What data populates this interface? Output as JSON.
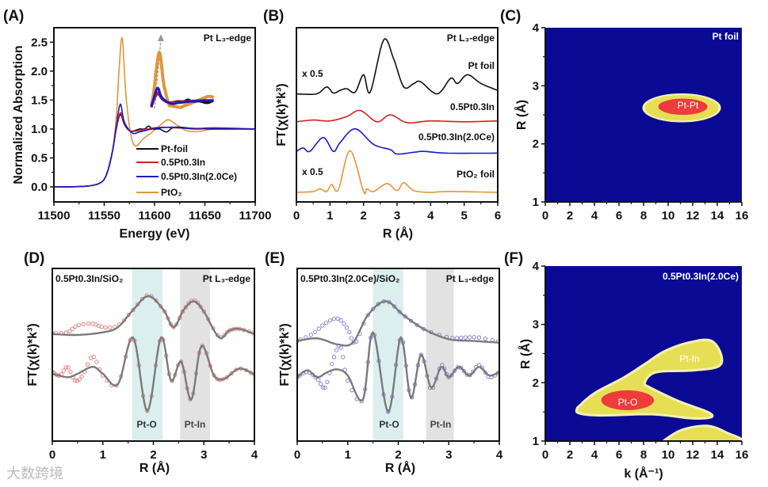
{
  "panel_labels": [
    "(A)",
    "(B)",
    "(C)",
    "(D)",
    "(E)",
    "(F)"
  ],
  "watermark": "大数跨境",
  "colors": {
    "pt_foil": "#111111",
    "pt_in": "#d42020",
    "pt_in_ce": "#1a1ac8",
    "pto2": "#e0963c",
    "map_bg": "#0b0a95",
    "map_yellow": "#e6df55",
    "map_pale": "#f3f0b5",
    "map_red": "#ee3b3b",
    "fit": "#7a7a7a",
    "d_data": "#e07878",
    "e_data": "#7a7ad0",
    "shade_pto": "#dcefef",
    "shade_ptin": "#e2e2e2"
  },
  "chart_data": [
    {
      "id": "A",
      "type": "line",
      "xlabel": "Energy (eV)",
      "ylabel": "Normalized Absorption",
      "xlim": [
        11500,
        11700
      ],
      "ylim": [
        -0.26,
        2.75
      ],
      "xticks": [
        11500,
        11550,
        11600,
        11650,
        11700
      ],
      "yticks": [
        0.0,
        0.5,
        1.0,
        1.5,
        2.0,
        2.5
      ],
      "ytick_labels": [
        "0.0",
        "0.5",
        "1.0",
        "1.5",
        "2.0",
        "2.5"
      ],
      "annotation": "Pt L₃-edge",
      "legend_position": "center-right",
      "series": [
        {
          "name": "Pt-foil",
          "color_key": "pt_foil",
          "x": [
            11500,
            11530,
            11545,
            11552,
            11558,
            11562,
            11566,
            11570,
            11575,
            11580,
            11585,
            11590,
            11594,
            11598,
            11605,
            11612,
            11620,
            11640,
            11660,
            11700
          ],
          "y": [
            0,
            0.01,
            0.06,
            0.2,
            0.6,
            1.0,
            1.25,
            1.08,
            0.97,
            0.97,
            1.0,
            1.0,
            1.05,
            1.0,
            1.0,
            0.95,
            1.03,
            1.01,
            1.0,
            1.0
          ]
        },
        {
          "name": "0.5Pt0.3In",
          "color_key": "pt_in",
          "x": [
            11500,
            11530,
            11545,
            11552,
            11558,
            11562,
            11566,
            11570,
            11575,
            11580,
            11590,
            11600,
            11610,
            11620,
            11640,
            11660,
            11700
          ],
          "y": [
            0,
            0.01,
            0.06,
            0.2,
            0.6,
            1.0,
            1.28,
            1.1,
            0.97,
            0.96,
            0.99,
            1.02,
            1.03,
            1.02,
            1.01,
            1.02,
            1.0
          ]
        },
        {
          "name": "0.5Pt0.3In(2.0Ce)",
          "color_key": "pt_in_ce",
          "x": [
            11500,
            11530,
            11545,
            11552,
            11558,
            11562,
            11566,
            11570,
            11578,
            11585,
            11595,
            11605,
            11620,
            11640,
            11660,
            11700
          ],
          "y": [
            0,
            0.01,
            0.06,
            0.2,
            0.6,
            1.05,
            1.43,
            1.12,
            0.93,
            0.95,
            0.99,
            1.02,
            1.03,
            1.0,
            1.01,
            1.0
          ]
        },
        {
          "name": "PtO₂",
          "color_key": "pto2",
          "x": [
            11500,
            11530,
            11545,
            11552,
            11558,
            11562,
            11565,
            11568,
            11572,
            11579,
            11590,
            11600,
            11608,
            11614,
            11622,
            11632,
            11645,
            11660,
            11700
          ],
          "y": [
            0,
            0.01,
            0.06,
            0.2,
            0.6,
            1.2,
            2.1,
            2.56,
            1.5,
            0.74,
            0.85,
            0.98,
            1.1,
            1.16,
            1.07,
            0.97,
            0.96,
            1.0,
            1.0
          ]
        }
      ],
      "inset": {
        "xlim": [
          11558,
          11618
        ],
        "ylim_base": 1.0,
        "arrow": "increasing white line"
      }
    },
    {
      "id": "B",
      "type": "line",
      "xlabel": "R (Å)",
      "ylabel": "FT(χ(k)*k³)",
      "xlim": [
        0,
        6
      ],
      "ylim": [
        0,
        10
      ],
      "xticks": [
        0,
        1,
        2,
        3,
        4,
        5,
        6
      ],
      "annotation": "Pt L₃-edge",
      "scale_notes": [
        "x 0.5",
        "x 0.5"
      ],
      "series": [
        {
          "name": "Pt foil",
          "color_key": "pt_foil",
          "x": [
            0,
            0.6,
            0.9,
            1.1,
            1.3,
            1.5,
            1.75,
            2.0,
            2.2,
            2.6,
            2.9,
            3.2,
            3.5,
            3.7,
            4.2,
            4.6,
            4.8,
            5.1,
            5.5,
            6
          ],
          "y": [
            6.2,
            6.2,
            6.6,
            6.25,
            6.4,
            6.5,
            6.3,
            7.3,
            6.3,
            9.3,
            8.2,
            6.6,
            6.8,
            6.9,
            6.2,
            7.1,
            6.8,
            7.3,
            6.8,
            6.4
          ]
        },
        {
          "name": "0.5Pt0.3In",
          "color_key": "pt_in",
          "x": [
            0,
            0.5,
            1,
            1.5,
            1.9,
            2.4,
            2.8,
            3.3,
            4,
            5,
            6
          ],
          "y": [
            4.6,
            4.7,
            4.65,
            4.9,
            5.25,
            4.6,
            5.0,
            4.55,
            4.65,
            4.6,
            4.65
          ]
        },
        {
          "name": "0.5Pt0.3In(2.0Ce)",
          "color_key": "pt_in_ce",
          "x": [
            0,
            0.2,
            0.4,
            0.8,
            1.1,
            1.3,
            1.75,
            2.3,
            2.8,
            3.0,
            3.5,
            3.8,
            4.5,
            6
          ],
          "y": [
            2.9,
            3.1,
            2.9,
            3.7,
            2.9,
            3.4,
            4.2,
            3.3,
            3.0,
            2.75,
            2.85,
            2.9,
            2.8,
            2.8
          ]
        },
        {
          "name": "PtO₂ foil",
          "color_key": "pto2",
          "x": [
            0,
            0.5,
            0.7,
            0.9,
            1.05,
            1.25,
            1.6,
            2.0,
            2.1,
            2.3,
            2.7,
            3.0,
            3.2,
            3.5,
            4,
            4.5,
            6
          ],
          "y": [
            0.55,
            0.6,
            0.75,
            0.6,
            1.0,
            0.7,
            2.95,
            0.6,
            0.75,
            0.6,
            1.05,
            0.65,
            1.1,
            0.65,
            0.55,
            0.6,
            0.55
          ]
        }
      ]
    },
    {
      "id": "C",
      "type": "heatmap",
      "xlabel": "",
      "ylabel": "R (Å)",
      "xlim": [
        0,
        16
      ],
      "ylim": [
        1,
        4
      ],
      "xticks": [
        0,
        2,
        4,
        6,
        8,
        10,
        12,
        14,
        16
      ],
      "yticks": [
        1,
        2,
        3,
        4
      ],
      "title": "Pt foil",
      "features": [
        {
          "label": "Pt-Pt",
          "level": "outer",
          "k_center": 11.1,
          "R_center": 2.62,
          "k_half": 3.0,
          "R_half": 0.22
        },
        {
          "label": "Pt-Pt",
          "level": "peak",
          "k_center": 11.2,
          "R_center": 2.64,
          "k_half": 2.0,
          "R_half": 0.14
        }
      ]
    },
    {
      "id": "D",
      "type": "line",
      "xlabel": "R (Å)",
      "ylabel": "FT(χ(k)*k³)",
      "xlim": [
        0,
        4
      ],
      "ylim": [
        0,
        10
      ],
      "xticks": [
        0,
        1,
        2,
        3,
        4
      ],
      "title": "0.5Pt0.3In/SiO₂",
      "annotation": "Pt L₃-edge",
      "shaded_regions": [
        {
          "label": "Pt-O",
          "range": [
            1.58,
            2.18
          ],
          "color_key": "shade_pto"
        },
        {
          "label": "Pt-In",
          "range": [
            2.53,
            3.12
          ],
          "color_key": "shade_ptin"
        }
      ],
      "series": [
        {
          "name": "magnitude data",
          "kind": "markers",
          "x": [
            0,
            0.3,
            0.5,
            0.8,
            1.0,
            1.3,
            1.6,
            1.9,
            2.2,
            2.4,
            2.6,
            2.8,
            3.0,
            3.3,
            3.5,
            3.7,
            4
          ],
          "y": [
            6.25,
            6.3,
            6.7,
            6.8,
            6.6,
            6.7,
            7.6,
            8.45,
            7.6,
            6.6,
            7.6,
            8.15,
            7.5,
            6.05,
            6.4,
            6.5,
            6.25
          ]
        },
        {
          "name": "magnitude fit",
          "kind": "line",
          "x": [
            0,
            0.5,
            1,
            1.3,
            1.6,
            1.9,
            2.2,
            2.4,
            2.6,
            2.8,
            3.0,
            3.3,
            3.5,
            3.7,
            4
          ],
          "y": [
            6.2,
            6.15,
            6.3,
            6.6,
            7.6,
            8.4,
            7.6,
            6.6,
            7.6,
            8.1,
            7.5,
            6.0,
            6.4,
            6.5,
            6.2
          ]
        },
        {
          "name": "real part data",
          "kind": "markers",
          "x": [
            0,
            0.15,
            0.3,
            0.45,
            0.6,
            0.8,
            1.0,
            1.3,
            1.6,
            1.88,
            2.15,
            2.35,
            2.55,
            2.75,
            2.95,
            3.2,
            3.4,
            3.7,
            4
          ],
          "y": [
            4.0,
            3.8,
            4.3,
            3.5,
            3.8,
            4.9,
            3.8,
            3.3,
            6.0,
            1.75,
            6.0,
            3.5,
            4.6,
            2.4,
            5.5,
            3.8,
            3.6,
            4.2,
            3.85
          ]
        },
        {
          "name": "real part fit",
          "kind": "line",
          "x": [
            0,
            0.3,
            0.5,
            0.8,
            1.0,
            1.3,
            1.6,
            1.88,
            2.15,
            2.35,
            2.55,
            2.75,
            2.95,
            3.2,
            3.4,
            3.7,
            4
          ],
          "y": [
            3.9,
            3.7,
            3.9,
            4.3,
            3.9,
            3.3,
            6.0,
            1.75,
            6.0,
            3.5,
            4.6,
            2.4,
            5.5,
            3.8,
            3.6,
            4.2,
            3.85
          ]
        }
      ]
    },
    {
      "id": "E",
      "type": "line",
      "xlabel": "R (Å)",
      "ylabel": "FT(χ(k)*k³)",
      "xlim": [
        0,
        4
      ],
      "ylim": [
        0,
        10
      ],
      "xticks": [
        0,
        1,
        2,
        3,
        4
      ],
      "title": "0.5Pt0.3In(2.0Ce)/SiO₂",
      "annotation": "Pt L₃-edge",
      "shaded_regions": [
        {
          "label": "Pt-O",
          "range": [
            1.5,
            2.1
          ],
          "color_key": "shade_pto"
        },
        {
          "label": "Pt-In",
          "range": [
            2.55,
            3.1
          ],
          "color_key": "shade_ptin"
        }
      ],
      "series": [
        {
          "name": "magnitude data",
          "kind": "markers",
          "x": [
            0,
            0.3,
            0.55,
            0.8,
            1.0,
            1.15,
            1.4,
            1.75,
            2.1,
            2.5,
            3.0,
            3.3,
            3.6,
            4
          ],
          "y": [
            5.8,
            6.2,
            6.8,
            7.1,
            6.5,
            5.7,
            7.3,
            8.1,
            7.3,
            6.5,
            6.0,
            6.0,
            6.0,
            5.75
          ]
        },
        {
          "name": "magnitude fit",
          "kind": "line",
          "x": [
            0,
            0.4,
            0.8,
            1.1,
            1.4,
            1.75,
            2.1,
            2.5,
            3.0,
            3.5,
            4
          ],
          "y": [
            5.8,
            5.95,
            5.6,
            5.7,
            7.3,
            8.1,
            7.3,
            6.5,
            5.9,
            5.8,
            5.7
          ]
        },
        {
          "name": "real part data",
          "kind": "markers",
          "x": [
            0,
            0.2,
            0.4,
            0.55,
            0.7,
            0.85,
            1.0,
            1.3,
            1.5,
            1.8,
            2.05,
            2.25,
            2.45,
            2.65,
            2.85,
            3.0,
            3.2,
            3.4,
            3.6,
            3.8,
            4
          ],
          "y": [
            3.7,
            4.0,
            3.6,
            3.1,
            4.6,
            5.5,
            3.5,
            2.4,
            6.3,
            1.7,
            6.0,
            2.5,
            5.0,
            3.0,
            4.4,
            3.7,
            4.3,
            3.8,
            4.4,
            3.7,
            4.0
          ]
        },
        {
          "name": "real part fit",
          "kind": "line",
          "x": [
            0,
            0.2,
            0.4,
            0.6,
            0.8,
            1.0,
            1.3,
            1.5,
            1.8,
            2.05,
            2.25,
            2.45,
            2.65,
            2.85,
            3.0,
            3.2,
            3.4,
            3.6,
            3.8,
            4
          ],
          "y": [
            3.7,
            4.1,
            3.7,
            4.0,
            4.15,
            3.8,
            2.4,
            6.3,
            1.7,
            6.0,
            2.5,
            5.0,
            3.1,
            4.3,
            3.7,
            4.3,
            3.8,
            4.3,
            3.8,
            4.0
          ]
        }
      ]
    },
    {
      "id": "F",
      "type": "heatmap",
      "xlabel": "k (Å⁻¹)",
      "ylabel": "R (Å)",
      "xlim": [
        0,
        16
      ],
      "ylim": [
        1,
        4
      ],
      "xticks": [
        0,
        2,
        4,
        6,
        8,
        10,
        12,
        14,
        16
      ],
      "yticks": [
        1,
        2,
        3,
        4
      ],
      "title": "0.5Pt0.3In(2.0Ce)",
      "labels": [
        {
          "text": "Pt-In",
          "k": 11.8,
          "R": 2.45
        },
        {
          "text": "Pt-O",
          "k": 6.7,
          "R": 1.67
        }
      ],
      "regions": [
        {
          "level": "outer",
          "k": [
            2.6,
            4.0,
            6.4,
            8.1,
            9.8,
            11.9,
            13.5,
            14.3,
            14.1,
            11.9,
            9.0,
            8.1,
            8.6,
            10.9,
            13.2,
            13.5,
            11.9,
            8.7,
            4.5,
            2.7
          ],
          "R": [
            1.57,
            1.82,
            2.09,
            2.32,
            2.55,
            2.7,
            2.72,
            2.49,
            2.28,
            2.21,
            2.18,
            2.0,
            1.91,
            1.68,
            1.5,
            1.41,
            1.39,
            1.46,
            1.44,
            1.48
          ]
        },
        {
          "level": "outer",
          "k": [
            9.6,
            11.1,
            13.2,
            14.8,
            15.7
          ],
          "R": [
            1.0,
            1.19,
            1.26,
            1.14,
            1.0
          ]
        },
        {
          "level": "peak",
          "k_center": 6.7,
          "R_center": 1.7,
          "k_half": 2.15,
          "R_half": 0.17
        }
      ]
    }
  ]
}
